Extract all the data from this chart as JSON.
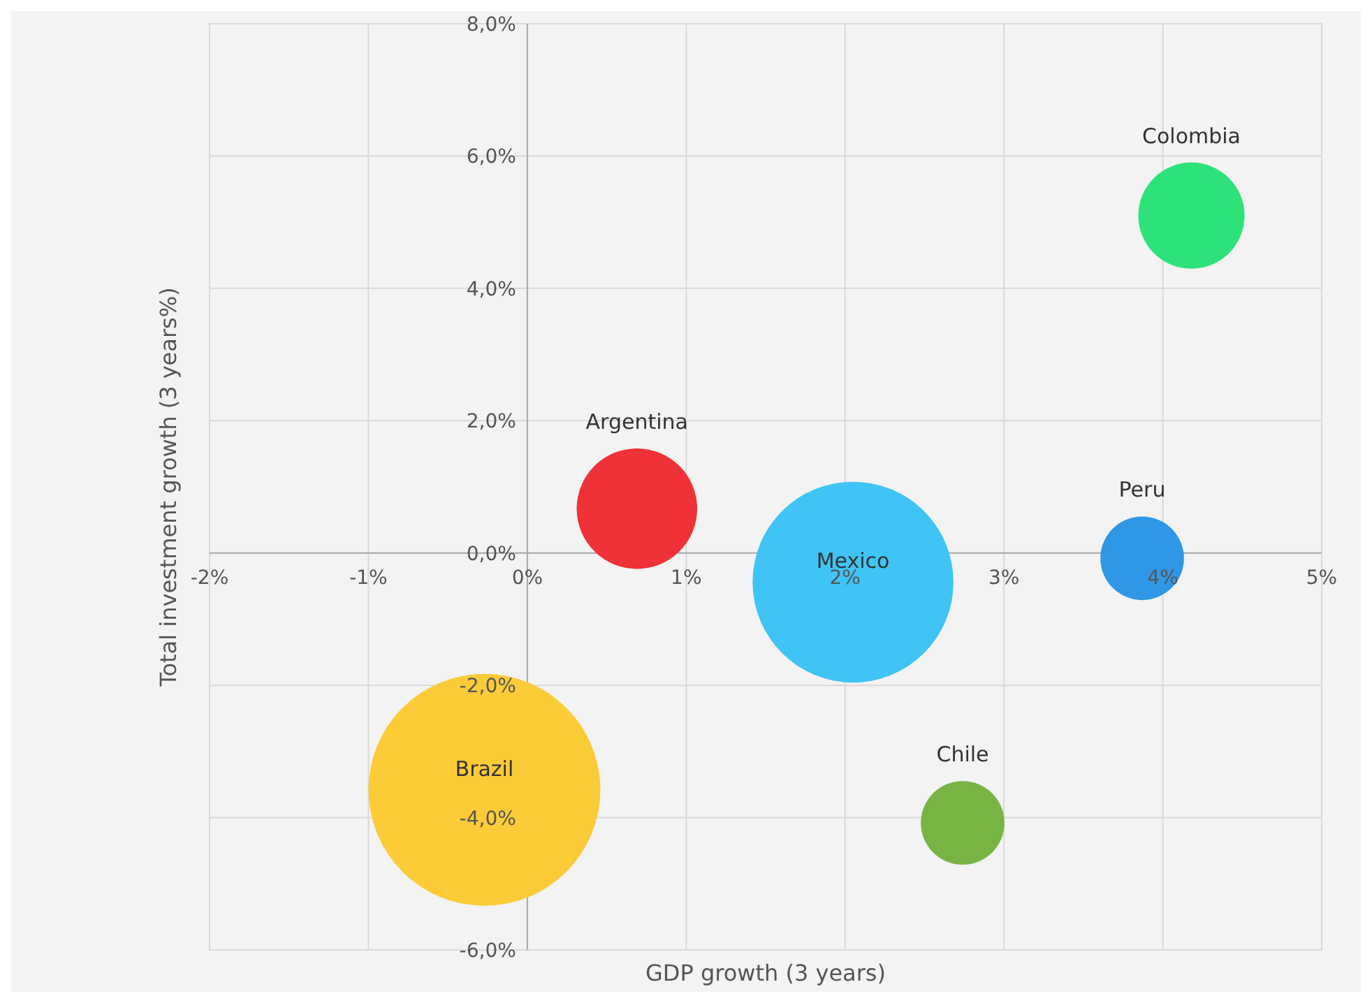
{
  "chart_data": {
    "type": "bubble",
    "xlabel": "GDP growth  (3 years)",
    "ylabel": "Total investment growth  (3 years%)",
    "xlim": [
      -2,
      5
    ],
    "ylim": [
      -6,
      8
    ],
    "xticks": [
      {
        "value": -2,
        "label": "-2%"
      },
      {
        "value": -1,
        "label": "-1%"
      },
      {
        "value": 0,
        "label": "0%"
      },
      {
        "value": 1,
        "label": "1%"
      },
      {
        "value": 2,
        "label": "2%"
      },
      {
        "value": 3,
        "label": "3%"
      },
      {
        "value": 4,
        "label": "4%"
      },
      {
        "value": 5,
        "label": "5%"
      }
    ],
    "yticks": [
      {
        "value": -6,
        "label": "-6,0%"
      },
      {
        "value": -4,
        "label": "-4,0%"
      },
      {
        "value": -2,
        "label": "-2,0%"
      },
      {
        "value": 0,
        "label": "0,0%"
      },
      {
        "value": 2,
        "label": "2,0%"
      },
      {
        "value": 4,
        "label": "4,0%"
      },
      {
        "value": 6,
        "label": "6,0%"
      },
      {
        "value": 8,
        "label": "8,0%"
      }
    ],
    "grid": true,
    "series": [
      {
        "name": "Colombia",
        "color": "#2ee27a",
        "x": [
          4.18
        ],
        "values": [
          5.1
        ],
        "sizes": [
          0.21
        ]
      },
      {
        "name": "Argentina",
        "color": "#ee3237",
        "x": [
          0.69
        ],
        "values": [
          0.67
        ],
        "sizes": [
          0.27
        ]
      },
      {
        "name": "Mexico",
        "color": "#3fc4f5",
        "x": [
          2.05
        ],
        "values": [
          -0.44
        ],
        "sizes": [
          0.75
        ]
      },
      {
        "name": "Peru",
        "color": "#2f97e8",
        "x": [
          3.87
        ],
        "values": [
          -0.08
        ],
        "sizes": [
          0.13
        ]
      },
      {
        "name": "Brazil",
        "color": "#fccb38",
        "x": [
          -0.27
        ],
        "values": [
          -3.58
        ],
        "sizes": [
          1
        ]
      },
      {
        "name": "Chile",
        "color": "#78b444",
        "x": [
          2.74
        ],
        "values": [
          -4.08
        ],
        "sizes": [
          0.13
        ]
      }
    ]
  }
}
